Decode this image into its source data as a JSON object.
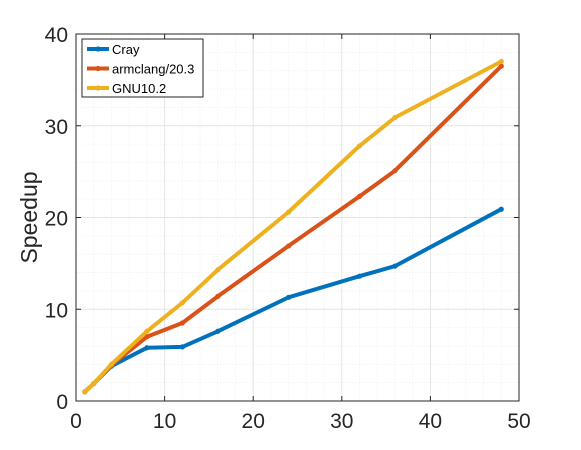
{
  "chart_data": {
    "type": "line",
    "title": "",
    "xlabel": "",
    "ylabel": "Speedup",
    "xlim": [
      0,
      50
    ],
    "ylim": [
      0,
      40
    ],
    "xticks": [
      0,
      10,
      20,
      30,
      40,
      50
    ],
    "yticks": [
      0,
      10,
      20,
      30,
      40
    ],
    "grid": "minor",
    "legend_position": "top-left",
    "series": [
      {
        "name": "Cray",
        "color": "#0072BD",
        "points": [
          [
            1,
            1
          ],
          [
            2,
            1.9
          ],
          [
            4,
            3.8
          ],
          [
            8,
            5.8
          ],
          [
            12,
            5.9
          ],
          [
            16,
            7.6
          ],
          [
            24,
            11.3
          ],
          [
            32,
            13.6
          ],
          [
            36,
            14.7
          ],
          [
            48,
            20.9
          ]
        ]
      },
      {
        "name": "armclang/20.3",
        "color": "#D95319",
        "points": [
          [
            1,
            1
          ],
          [
            2,
            1.9
          ],
          [
            4,
            3.9
          ],
          [
            8,
            7.0
          ],
          [
            12,
            8.5
          ],
          [
            16,
            11.4
          ],
          [
            24,
            16.9
          ],
          [
            32,
            22.3
          ],
          [
            36,
            25.1
          ],
          [
            48,
            36.5
          ]
        ]
      },
      {
        "name": "GNU10.2",
        "color": "#EDB120",
        "points": [
          [
            1,
            1
          ],
          [
            2,
            1.9
          ],
          [
            4,
            4.0
          ],
          [
            8,
            7.6
          ],
          [
            12,
            10.7
          ],
          [
            16,
            14.3
          ],
          [
            24,
            20.6
          ],
          [
            32,
            27.8
          ],
          [
            36,
            30.9
          ],
          [
            48,
            37.0
          ]
        ]
      }
    ]
  }
}
